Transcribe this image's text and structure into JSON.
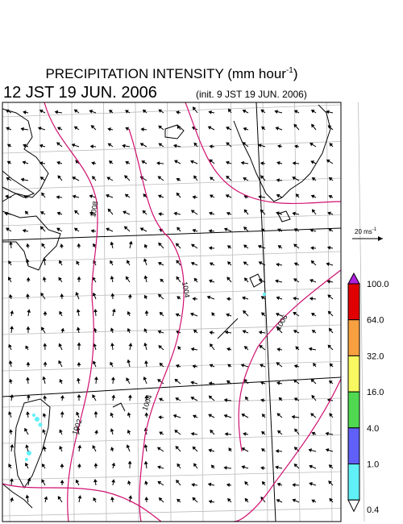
{
  "header": {
    "title": "PRECIPITATION INTENSITY (mm hour",
    "title_exponent": "-1",
    "title_close": ")",
    "valid_time": "12 JST 19 JUN. 2006",
    "init_time": "(init. 9 JST 19 JUN. 2006)"
  },
  "map": {
    "isobar_labels": [
      "1008",
      "1004",
      "1006",
      "1004",
      "1002"
    ]
  },
  "wind_key": {
    "label": "20 ms",
    "exponent": "-1"
  },
  "colorbar": {
    "labels": [
      "100.0",
      "64.0",
      "32.0",
      "16.0",
      "4.0",
      "1.0",
      "0.4"
    ],
    "colors": [
      "#b020e0",
      "#e00000",
      "#f8a040",
      "#f8f860",
      "#50d850",
      "#6060f8",
      "#60f0f8",
      "#ffffff"
    ]
  }
}
